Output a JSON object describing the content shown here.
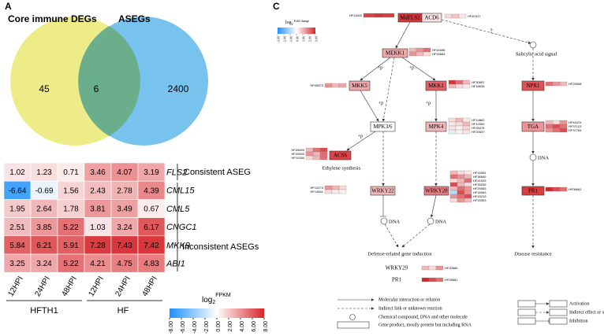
{
  "panelA": {
    "label": "A",
    "sets": [
      "Core immune DEGs",
      "ASEGs"
    ],
    "counts": [
      45,
      6,
      2400
    ]
  },
  "panelB": {
    "label": "B",
    "genes": [
      "FLS2",
      "CML15",
      "CML5",
      "CNGC1",
      "MKK9",
      "ABI1"
    ],
    "values": [
      [
        1.02,
        1.23,
        0.71,
        3.46,
        4.07,
        3.19
      ],
      [
        -6.64,
        -0.69,
        1.56,
        2.43,
        2.78,
        4.39
      ],
      [
        1.95,
        2.64,
        1.78,
        3.81,
        3.49,
        0.67
      ],
      [
        2.51,
        3.85,
        5.22,
        1.03,
        3.24,
        6.17
      ],
      [
        5.84,
        6.21,
        5.91,
        7.28,
        7.43,
        7.42
      ],
      [
        3.25,
        3.24,
        5.22,
        4.21,
        4.75,
        4.83
      ]
    ],
    "columns": [
      "12HPI",
      "24HPI",
      "48HPI",
      "12HPI",
      "24HPI",
      "48HPI"
    ],
    "groups": [
      "HFTH1",
      "HF"
    ],
    "row_groups": [
      "Consistent ASEG",
      "Inconsistent ASEGs"
    ],
    "colorbar": {
      "title_base": "log",
      "title_sub": "2",
      "title_sup": "FPKM",
      "lim": [
        -8,
        8
      ],
      "ticks": [
        {
          "value": -8,
          "label": "-8.00"
        },
        {
          "value": -6,
          "label": "-6.00"
        },
        {
          "value": -4,
          "label": "-4.00"
        },
        {
          "value": -2,
          "label": "-2.00"
        },
        {
          "value": 0,
          "label": "0.00"
        },
        {
          "value": 2,
          "label": "2.00"
        },
        {
          "value": 4,
          "label": "4.00"
        },
        {
          "value": 6,
          "label": "6.00"
        },
        {
          "value": 8,
          "label": "8.00"
        }
      ]
    }
  },
  "panelC": {
    "label": "C",
    "colorbar": {
      "title_base": "log",
      "title_sub": "2",
      "title_rest": "Fold change",
      "lim": [
        -3,
        3
      ],
      "ticks": [
        {
          "value": -3,
          "label": "-3.00"
        },
        {
          "value": -2,
          "label": "-2.00"
        },
        {
          "value": -1,
          "label": "-1.00"
        },
        {
          "value": 0,
          "label": "0.00"
        },
        {
          "value": 1,
          "label": "1.00"
        },
        {
          "value": 2,
          "label": "2.00"
        },
        {
          "value": 3,
          "label": "3.00"
        }
      ]
    },
    "nodes": [
      {
        "label": "MdFLS2",
        "fc": 2.8,
        "genes": [
          {
            "id": "HF11840",
            "fc": [
              2.6,
              2.8,
              2.7
            ]
          }
        ]
      },
      {
        "label": "ACD6",
        "fc": 0.4,
        "genes": [
          {
            "id": "HF40317",
            "fc": [
              0.5,
              0.8,
              0.3
            ]
          }
        ]
      },
      {
        "label": "MEKK1",
        "fc": 1.2,
        "genes": [
          {
            "id": "HF44498",
            "fc": [
              1.0,
              1.5,
              2.0
            ]
          },
          {
            "id": "HF44664",
            "fc": [
              1.5,
              1.0,
              0.5
            ]
          }
        ]
      },
      {
        "label": "MKK5",
        "fc": 1.2,
        "genes": [
          {
            "id": "HF05573",
            "fc": [
              1.5,
              1.0,
              1.2
            ]
          }
        ]
      },
      {
        "label": "MKK1",
        "fc": 2.2,
        "genes": [
          {
            "id": "HF30657",
            "fc": [
              2.8,
              2.0,
              1.0
            ]
          },
          {
            "id": "HF18638",
            "fc": [
              1.0,
              0.5,
              0.3
            ]
          }
        ]
      },
      {
        "label": "MPK3/6",
        "fc": 0,
        "genes": []
      },
      {
        "label": "MPK4",
        "fc": 1.0,
        "genes": [
          {
            "id": "HF14862",
            "fc": [
              0.5,
              1.0,
              0.3
            ]
          },
          {
            "id": "HF10300",
            "fc": [
              0.3,
              0.5,
              1.0
            ]
          },
          {
            "id": "HF28478",
            "fc": [
              0.4,
              0.2,
              0.6
            ]
          },
          {
            "id": "HF20637",
            "fc": [
              -0.4,
              0.2,
              0.4
            ]
          }
        ]
      },
      {
        "label": "ACS6",
        "fc": 2.6,
        "genes": [
          {
            "id": "HF28490",
            "fc": [
              1.0,
              2.0,
              2.5
            ]
          },
          {
            "id": "HF20652",
            "fc": [
              1.5,
              1.0,
              2.0
            ]
          },
          {
            "id": "HF10284",
            "fc": [
              0.5,
              1.0,
              2.0
            ]
          }
        ]
      },
      {
        "label": "WRKY22",
        "fc": 1.0,
        "genes": [
          {
            "id": "HF10274",
            "fc": [
              1.5,
              1.0,
              0.5
            ]
          },
          {
            "id": "HF14841",
            "fc": [
              0.5,
              0.3,
              0.2
            ]
          }
        ]
      },
      {
        "label": "WRKY28",
        "fc": 1.8,
        "genes": [
          {
            "id": "HF11854",
            "fc": [
              1.0,
              0.5,
              0.3
            ]
          },
          {
            "id": "HF36695",
            "fc": [
              2.0,
              1.5,
              1.0
            ]
          },
          {
            "id": "HF41525",
            "fc": [
              0.5,
              1.0,
              2.0
            ]
          },
          {
            "id": "HF35295",
            "fc": [
              2.5,
              1.0,
              0.5
            ]
          },
          {
            "id": "HF29083",
            "fc": [
              1.0,
              2.0,
              1.5
            ]
          },
          {
            "id": "HF34063",
            "fc": [
              -1.0,
              2.5,
              1.5
            ]
          },
          {
            "id": "HF16219",
            "fc": [
              1.5,
              2.0,
              2.5
            ]
          },
          {
            "id": "HF15353",
            "fc": [
              0.5,
              1.5,
              1.0
            ]
          }
        ]
      },
      {
        "label": "NPR1",
        "fc": 2.4,
        "genes": [
          {
            "id": "HF29058",
            "fc": [
              2.0,
              1.5,
              1.0
            ]
          }
        ]
      },
      {
        "label": "TGA",
        "fc": 1.5,
        "genes": [
          {
            "id": "HF44474",
            "fc": [
              1.0,
              0.5,
              1.5
            ]
          },
          {
            "id": "HF37123",
            "fc": [
              2.0,
              2.5,
              2.0
            ]
          },
          {
            "id": "HF37764",
            "fc": [
              1.5,
              2.0,
              2.5
            ]
          }
        ]
      },
      {
        "label": "PR1",
        "fc": 2.7,
        "genes": [
          {
            "id": "HF08681",
            "fc": [
              3.0,
              2.5,
              2.0
            ]
          }
        ]
      }
    ],
    "outputs": [
      {
        "label": "WRKY29",
        "genes": [
          {
            "id": "HF20666",
            "fc": [
              1.0,
              0.5,
              1.5
            ]
          }
        ]
      },
      {
        "label": "PR1",
        "genes": [
          {
            "id": "HF08681",
            "fc": [
              3.0,
              2.5,
              2.0
            ]
          }
        ]
      }
    ],
    "phospho": [
      "+p",
      "+p",
      "+p",
      "+p",
      "+p"
    ],
    "unknown": "?",
    "annotations": [
      "Salicylic acid signal",
      "Ethylene synthesis",
      "DNA",
      "DNA",
      "DNA",
      "Defense-related gene induction",
      "Disease resistance"
    ],
    "legend_left": [
      "Molecular interaction or relation",
      "Indirect link or unknown reaction",
      "Chemical compound, DNA and other molecule",
      "Gene product, mostly protein but including RNA"
    ],
    "legend_right": [
      "Activation",
      "Indirect effect or state change",
      "Inhibition"
    ]
  }
}
